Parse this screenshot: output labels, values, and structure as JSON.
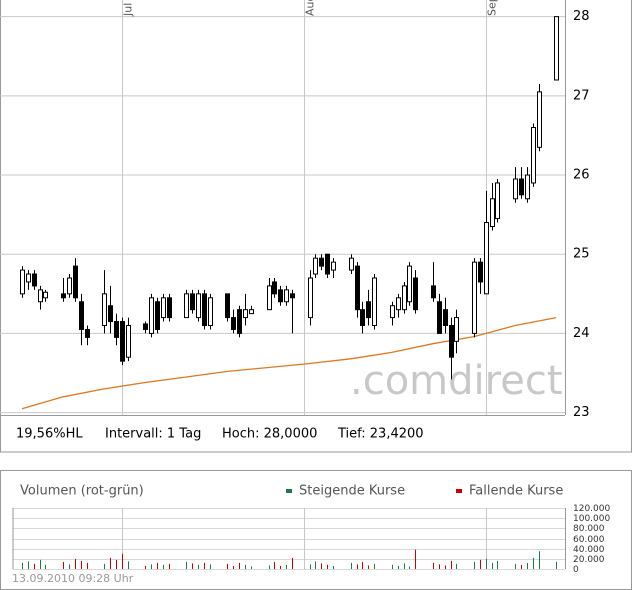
{
  "chart_data": [
    {
      "type": "candlestick",
      "x": [
        0,
        1,
        2,
        3,
        4,
        7,
        8,
        9,
        10,
        11,
        14,
        15,
        16,
        17,
        18,
        21,
        22,
        23,
        24,
        25,
        28,
        29,
        30,
        31,
        32,
        35,
        36,
        37,
        38,
        39,
        42,
        43,
        44,
        45,
        46,
        49,
        50,
        51,
        52,
        53,
        56,
        57,
        58,
        59,
        60,
        63,
        64,
        65,
        66,
        67,
        70,
        71,
        72,
        73,
        74,
        77,
        78,
        79,
        80,
        81,
        84,
        85,
        86,
        87,
        88,
        91
      ],
      "open": [
        24.5,
        24.65,
        24.75,
        24.4,
        24.45,
        24.5,
        24.5,
        24.85,
        24.4,
        24.05,
        24.1,
        24.35,
        24.15,
        24.15,
        23.7,
        24.12,
        24.0,
        24.4,
        24.2,
        24.45,
        24.2,
        24.5,
        24.2,
        24.5,
        24.1,
        24.5,
        24.2,
        24.3,
        24.2,
        24.25,
        24.3,
        24.65,
        24.55,
        24.4,
        24.5,
        24.2,
        24.75,
        24.95,
        25.0,
        24.8,
        24.8,
        24.85,
        24.3,
        24.4,
        24.1,
        24.2,
        24.3,
        24.3,
        24.4,
        24.7,
        24.6,
        24.4,
        24.3,
        24.1,
        23.9,
        24.0,
        24.9,
        24.5,
        25.35,
        25.45,
        25.7,
        25.95,
        25.7,
        25.9,
        26.35,
        27.2
      ],
      "high": [
        24.85,
        24.8,
        24.8,
        24.6,
        24.55,
        24.7,
        24.75,
        24.95,
        24.5,
        24.1,
        24.8,
        24.6,
        24.25,
        24.2,
        24.2,
        24.15,
        24.5,
        24.45,
        24.5,
        24.5,
        24.55,
        24.55,
        24.55,
        24.55,
        24.5,
        24.5,
        24.3,
        24.35,
        24.5,
        24.35,
        24.7,
        24.7,
        24.6,
        24.6,
        24.55,
        24.8,
        25.0,
        25.0,
        25.0,
        24.95,
        25.0,
        24.9,
        24.4,
        24.55,
        24.75,
        24.4,
        24.5,
        24.65,
        24.9,
        24.8,
        24.9,
        24.5,
        24.45,
        24.2,
        24.3,
        24.95,
        24.95,
        25.8,
        25.9,
        25.95,
        26.1,
        26.1,
        26.1,
        26.65,
        27.15,
        28.0
      ],
      "low": [
        24.45,
        24.55,
        24.55,
        24.3,
        24.4,
        24.4,
        24.45,
        24.4,
        23.85,
        23.85,
        24.0,
        24.0,
        23.85,
        23.6,
        23.65,
        24.0,
        23.95,
        24.0,
        24.15,
        24.15,
        24.2,
        24.25,
        24.15,
        24.05,
        24.05,
        24.15,
        24.0,
        23.95,
        24.1,
        24.25,
        24.3,
        24.45,
        24.35,
        24.35,
        24.0,
        24.1,
        24.7,
        24.8,
        24.7,
        24.7,
        24.75,
        24.2,
        24.0,
        24.1,
        24.05,
        24.1,
        24.2,
        24.25,
        24.35,
        24.25,
        24.4,
        24.0,
        24.0,
        23.42,
        23.75,
        23.95,
        24.5,
        24.5,
        25.3,
        25.4,
        25.65,
        25.7,
        25.65,
        25.85,
        26.3,
        27.2
      ],
      "close": [
        24.8,
        24.75,
        24.6,
        24.55,
        24.52,
        24.45,
        24.7,
        24.45,
        24.05,
        23.95,
        24.5,
        24.15,
        23.95,
        23.65,
        24.1,
        24.05,
        24.45,
        24.05,
        24.45,
        24.2,
        24.5,
        24.3,
        24.5,
        24.1,
        24.45,
        24.2,
        24.05,
        24.0,
        24.3,
        24.3,
        24.6,
        24.5,
        24.4,
        24.55,
        24.45,
        24.7,
        24.95,
        24.85,
        24.75,
        24.9,
        24.95,
        24.3,
        24.1,
        24.2,
        24.7,
        24.35,
        24.45,
        24.6,
        24.85,
        24.3,
        24.45,
        24.0,
        24.1,
        23.7,
        24.2,
        24.9,
        24.65,
        25.4,
        25.7,
        25.9,
        25.95,
        25.75,
        26.0,
        26.6,
        27.05,
        28.0
      ],
      "up_color": "#ffffff",
      "down_color": "#000000",
      "wick_color": "#000000",
      "moving_average": {
        "color": "#e07820",
        "x": [
          0,
          7,
          14,
          21,
          28,
          35,
          42,
          49,
          56,
          63,
          70,
          77,
          84,
          91
        ],
        "values": [
          23.05,
          23.2,
          23.3,
          23.38,
          23.45,
          23.52,
          23.57,
          23.62,
          23.68,
          23.76,
          23.87,
          23.96,
          24.1,
          24.2
        ]
      },
      "xlim": [
        -3.4,
        92.5
      ],
      "xticks": [
        {
          "value": 17,
          "label": "Jul"
        },
        {
          "value": 48,
          "label": "Aug"
        },
        {
          "value": 79,
          "label": "Sep"
        }
      ],
      "ylim": [
        22.97,
        28.21
      ],
      "yticks": [
        23,
        24,
        25,
        26,
        27,
        28
      ],
      "grid": true,
      "stats": [
        "19,56%HL",
        "Intervall: 1 Tag",
        "Hoch: 28,0000",
        "Tief: 23,4200"
      ],
      "watermark": ".comdirect"
    },
    {
      "type": "bar",
      "title": "Volumen (rot-grün)",
      "series": [
        {
          "name": "Steigende Kurse",
          "color": "#1e7a46",
          "values": [
            12000,
            15000,
            null,
            18000,
            8000,
            null,
            9000,
            null,
            null,
            null,
            10000,
            null,
            null,
            null,
            15000,
            null,
            9000,
            null,
            8000,
            null,
            14000,
            null,
            8000,
            null,
            9000,
            null,
            null,
            null,
            8000,
            5000,
            7000,
            null,
            null,
            8000,
            null,
            9000,
            15000,
            null,
            null,
            6000,
            12000,
            null,
            null,
            null,
            10000,
            8000,
            6000,
            11000,
            5000,
            null,
            null,
            null,
            null,
            null,
            10000,
            14000,
            null,
            20000,
            12000,
            16000,
            10000,
            null,
            12000,
            22000,
            35000,
            14000
          ]
        },
        {
          "name": "Fallende Kurse",
          "color": "#cc0000",
          "values": [
            null,
            null,
            10000,
            null,
            null,
            14000,
            null,
            20000,
            16000,
            12000,
            null,
            22000,
            18000,
            30000,
            null,
            6000,
            null,
            12000,
            null,
            10000,
            null,
            11000,
            null,
            12000,
            null,
            10000,
            6000,
            12000,
            null,
            null,
            null,
            14000,
            6000,
            null,
            22000,
            null,
            null,
            11000,
            8000,
            null,
            null,
            9000,
            14000,
            7000,
            null,
            null,
            null,
            null,
            null,
            38000,
            12000,
            9000,
            7000,
            16000,
            null,
            null,
            18000,
            null,
            null,
            null,
            null,
            8000,
            null,
            null,
            null,
            null
          ]
        }
      ],
      "ylim": [
        0,
        120000
      ],
      "yticks": [
        0,
        {
          "value": 20000,
          "label": "20.000"
        },
        {
          "value": 40000,
          "label": "40.000"
        },
        {
          "value": 60000,
          "label": "60.000"
        },
        {
          "value": 80000,
          "label": "80.000"
        },
        {
          "value": 100000,
          "label": "100.000"
        },
        {
          "value": 120000,
          "label": "120.000"
        }
      ],
      "grid": true,
      "timestamp": "13.09.2010 09:28 Uhr"
    }
  ]
}
